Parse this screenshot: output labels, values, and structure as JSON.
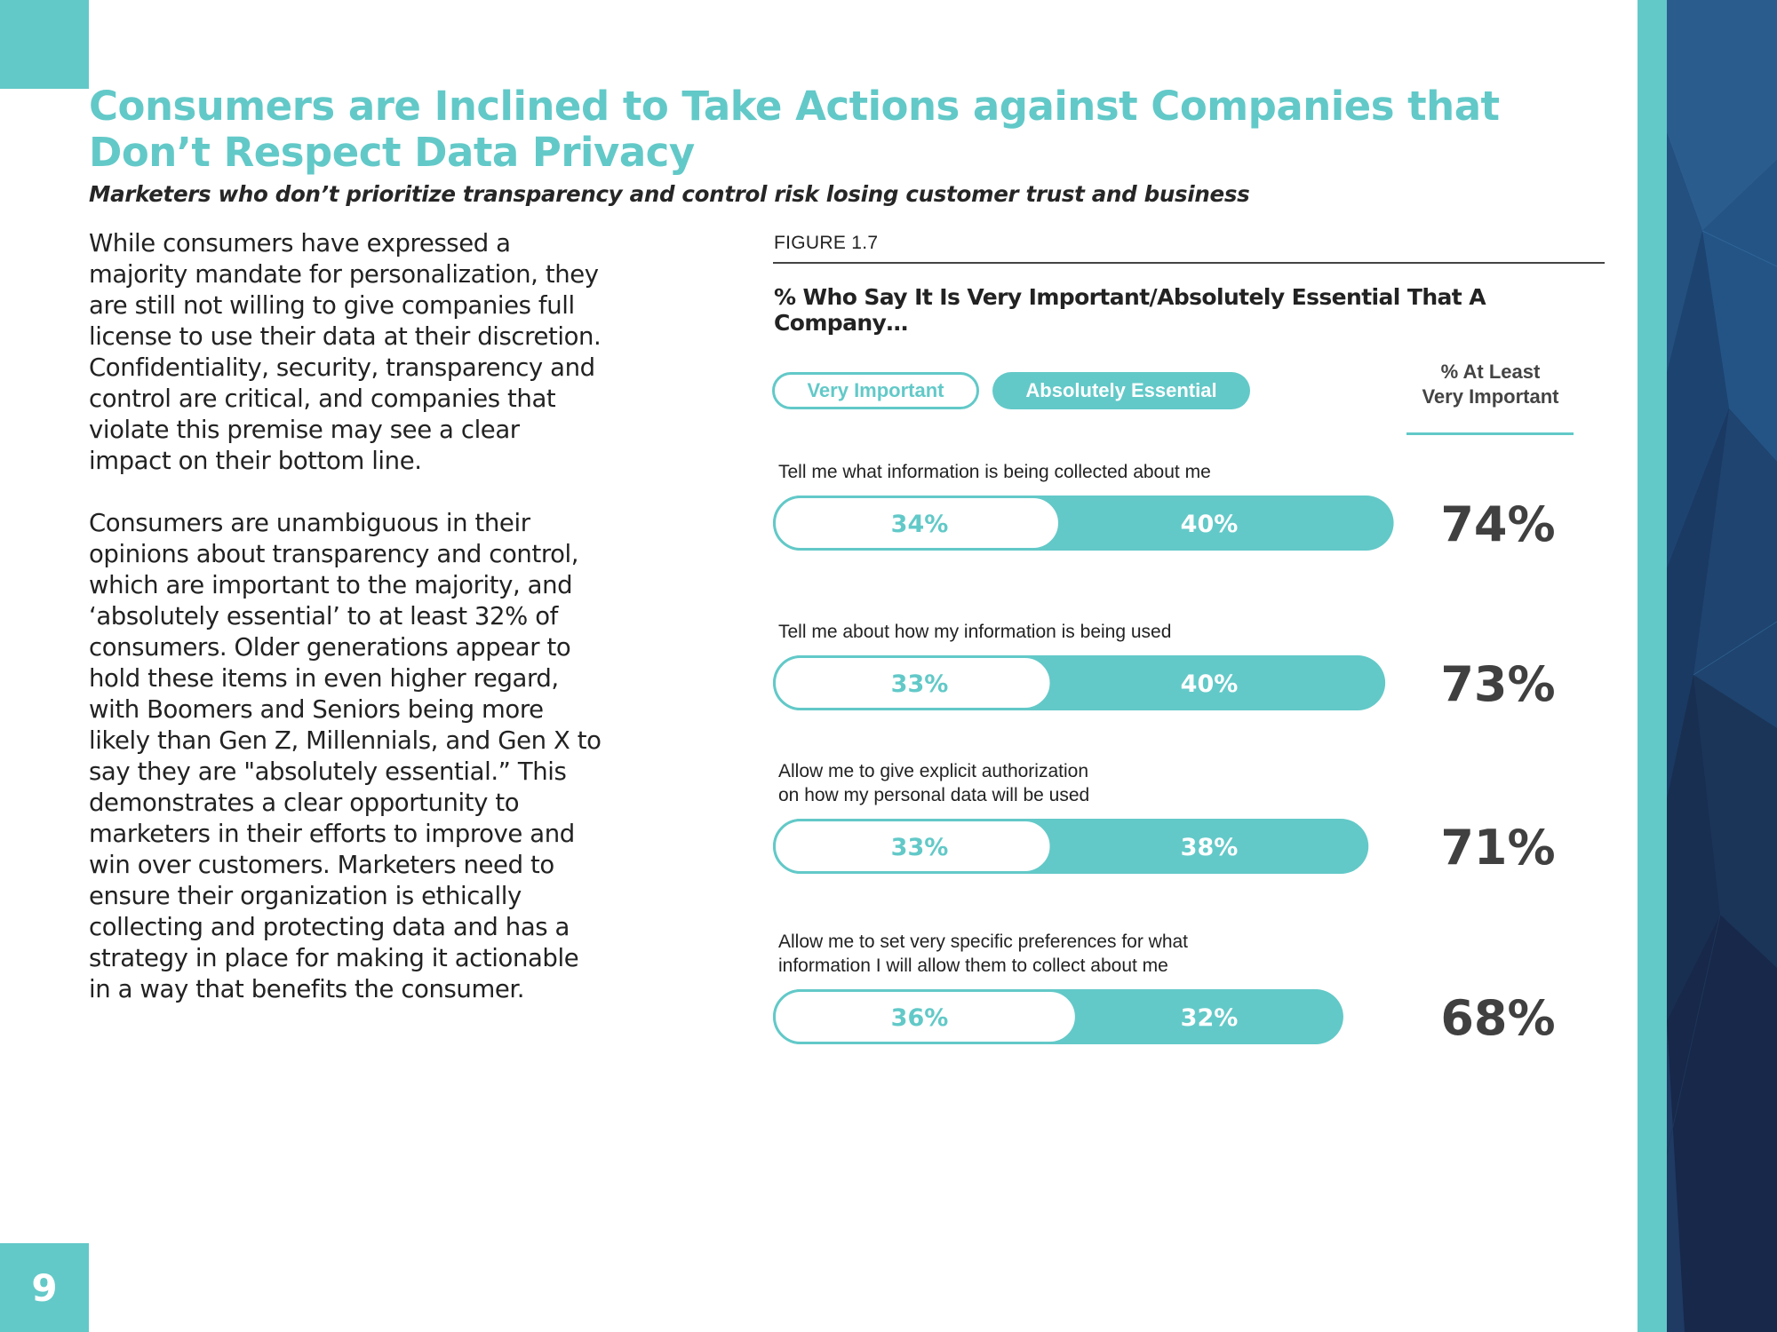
{
  "page": {
    "number": "9",
    "title": "Consumers are Inclined to Take Actions against Companies that Don’t Respect Data Privacy",
    "subtitle": "Marketers who don’t prioritize transparency and control risk losing customer trust and business",
    "body_paragraphs": [
      "While consumers have expressed a majority mandate for personalization, they are still not willing to give companies full license to use their data at their discretion. Confidentiality, security, transparency and control are critical, and companies that violate this premise may see a clear impact on their bottom line.",
      "Consumers are unambiguous in their opinions about transparency and control, which are important to the majority, and ‘absolutely essential’ to at least 32% of consumers. Older generations appear to hold these items in even higher regard, with Boomers and Seniors being more likely than Gen Z, Millennials, and Gen X to say they are \"absolutely essential.” This demonstrates a clear opportunity to marketers in their efforts to improve and win over customers. Marketers need to ensure their organization is ethically collecting and protecting data and has a strategy in place for making it actionable in a way that benefits the consumer."
    ]
  },
  "colors": {
    "accent": "#62c9c8",
    "dark": "#404040",
    "panel_dark": "#1c2a4a",
    "panel_mid": "#22497a"
  },
  "chart_data": {
    "type": "bar",
    "stacked": true,
    "orientation": "horizontal",
    "figure_label": "FIGURE 1.7",
    "title": "% Who Say It Is Very Important/Absolutely Essential That A Company…",
    "legend": [
      "Very Important",
      "Absolutely Essential"
    ],
    "total_column_label": [
      "% At Least",
      "Very Important"
    ],
    "categories": [
      [
        "Tell me what information is being collected about me"
      ],
      [
        "Tell me about how my information is being used"
      ],
      [
        "Allow me to give explicit authorization",
        "on how my personal data will be used"
      ],
      [
        "Allow me to set very specific preferences for what",
        "information I will allow them to collect about me"
      ]
    ],
    "series": [
      {
        "name": "Very Important",
        "values": [
          34,
          33,
          33,
          36
        ]
      },
      {
        "name": "Absolutely Essential",
        "values": [
          40,
          40,
          38,
          32
        ]
      }
    ],
    "totals": [
      74,
      73,
      71,
      68
    ],
    "unit": "%"
  }
}
